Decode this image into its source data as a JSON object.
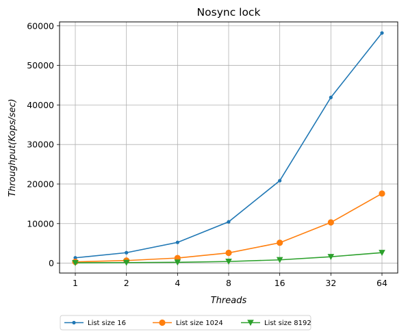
{
  "chart_data": {
    "type": "line",
    "title": "Nosync lock",
    "xlabel": "Threads",
    "ylabel": "Throughput(Kops/sec)",
    "x": [
      1,
      2,
      4,
      8,
      16,
      32,
      64
    ],
    "x_tick_labels": [
      "1",
      "2",
      "4",
      "8",
      "16",
      "32",
      "64"
    ],
    "x_scale": "log2",
    "ylim": [
      -2500,
      61000
    ],
    "y_ticks": [
      0,
      10000,
      20000,
      30000,
      40000,
      50000,
      60000
    ],
    "y_tick_labels": [
      "0",
      "10000",
      "20000",
      "30000",
      "40000",
      "50000",
      "60000"
    ],
    "grid": true,
    "legend_position": "bottom-center",
    "series": [
      {
        "name": "List size 16",
        "color": "#1f77b4",
        "marker": "dot",
        "values": [
          1350,
          2650,
          5250,
          10450,
          20850,
          41900,
          58200
        ]
      },
      {
        "name": "List size 1024",
        "color": "#ff7f0e",
        "marker": "circle",
        "values": [
          330,
          660,
          1300,
          2600,
          5150,
          10300,
          17600
        ]
      },
      {
        "name": "List size 8192",
        "color": "#2ca02c",
        "marker": "triangle-down",
        "values": [
          90,
          140,
          210,
          420,
          830,
          1620,
          2660
        ]
      }
    ]
  }
}
